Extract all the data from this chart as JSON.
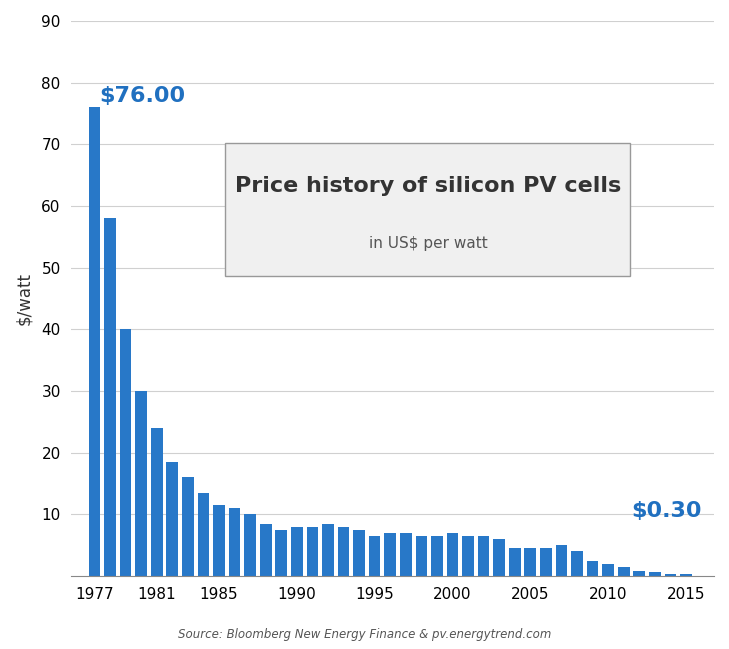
{
  "years": [
    1977,
    1978,
    1979,
    1980,
    1981,
    1982,
    1983,
    1984,
    1985,
    1986,
    1987,
    1988,
    1989,
    1990,
    1991,
    1992,
    1993,
    1994,
    1995,
    1996,
    1997,
    1998,
    1999,
    2000,
    2001,
    2002,
    2003,
    2004,
    2005,
    2006,
    2007,
    2008,
    2009,
    2010,
    2011,
    2012,
    2013,
    2014,
    2015
  ],
  "values": [
    76.0,
    58.0,
    40.0,
    30.0,
    24.0,
    18.5,
    16.0,
    13.5,
    11.5,
    11.0,
    10.0,
    8.5,
    7.5,
    8.0,
    8.0,
    8.5,
    8.0,
    7.5,
    6.5,
    7.0,
    7.0,
    6.5,
    6.5,
    7.0,
    6.5,
    6.5,
    6.0,
    4.5,
    4.5,
    4.5,
    5.0,
    4.0,
    2.5,
    2.0,
    1.5,
    0.8,
    0.6,
    0.4,
    0.3
  ],
  "bar_color": "#2878c8",
  "title_line1": "Price history of silicon PV cells",
  "title_line2": "in US$ per watt",
  "ylabel": "$/watt",
  "ylim": [
    0,
    90
  ],
  "yticks": [
    10,
    20,
    30,
    40,
    50,
    60,
    70,
    80,
    90
  ],
  "xlim": [
    1975.5,
    2016.8
  ],
  "xtick_positions": [
    1977,
    1981,
    1985,
    1990,
    1995,
    2000,
    2005,
    2010,
    2015
  ],
  "first_label": "$76.00",
  "last_label": "$0.30",
  "label_color": "#2070c0",
  "source_text": "Source: Bloomberg New Energy Finance & pv.energytrend.com",
  "bg_color": "#ffffff",
  "plot_bg_color": "#ffffff",
  "grid_color": "#d0d0d0",
  "title_box_facecolor": "#f0f0f0",
  "title_box_edgecolor": "#999999",
  "title1_color": "#333333",
  "title2_color": "#555555",
  "source_color": "#555555"
}
